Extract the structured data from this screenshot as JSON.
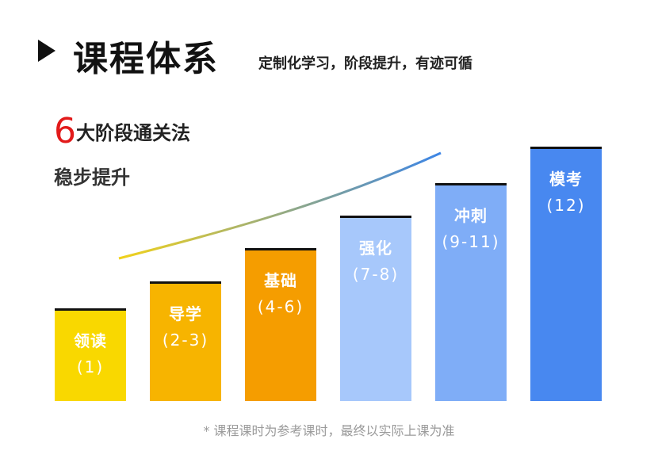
{
  "header": {
    "title": "课程体系",
    "subtitle": "定制化学习，阶段提升，有迹可循"
  },
  "intro": {
    "stage_count": "6",
    "stage_text": "大阶段通关法",
    "steady": "稳步提升"
  },
  "stages": [
    {
      "name": "领读",
      "range": "(1)",
      "color": "#f9d800"
    },
    {
      "name": "导学",
      "range": "(2-3)",
      "color": "#f7b400"
    },
    {
      "name": "基础",
      "range": "(4-6)",
      "color": "#f59d00"
    },
    {
      "name": "强化",
      "range": "(7-8)",
      "color": "#a7c8fb"
    },
    {
      "name": "冲刺",
      "range": "(9-11)",
      "color": "#7fadf7"
    },
    {
      "name": "模考",
      "range": "(12)",
      "color": "#4888f0"
    }
  ],
  "footnote": "* 课程课时为参考课时，最终以实际上课为准",
  "colors": {
    "accent_red": "#e21a1a",
    "curve_start": "#f2d21a",
    "curve_end": "#3c85e6"
  }
}
